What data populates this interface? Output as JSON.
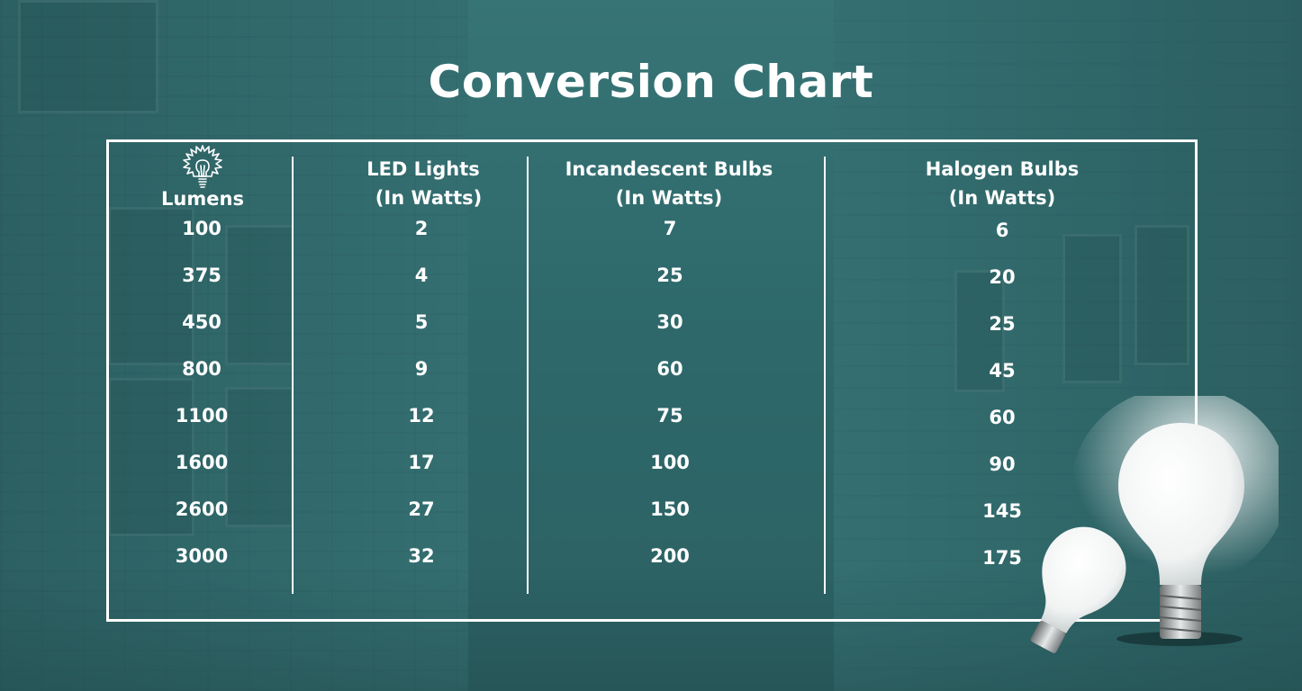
{
  "chart_data": {
    "type": "table",
    "title": "Conversion Chart",
    "columns": [
      {
        "key": "lumens",
        "label_lines": [
          "Lumens"
        ],
        "icon": "light-bulb-icon"
      },
      {
        "key": "led",
        "label_lines": [
          "LED Lights",
          "(In Watts)"
        ]
      },
      {
        "key": "incandescent",
        "label_lines": [
          "Incandescent Bulbs",
          "(In Watts)"
        ]
      },
      {
        "key": "halogen",
        "label_lines": [
          "Halogen Bulbs",
          "(In Watts)"
        ]
      }
    ],
    "rows": [
      [
        "100",
        "2",
        "7",
        "6"
      ],
      [
        "375",
        "4",
        "25",
        "20"
      ],
      [
        "450",
        "5",
        "30",
        "25"
      ],
      [
        "800",
        "9",
        "60",
        "45"
      ],
      [
        "1100",
        "12",
        "75",
        "60"
      ],
      [
        "1600",
        "17",
        "100",
        "90"
      ],
      [
        "2600",
        "27",
        "150",
        "145"
      ],
      [
        "3000",
        "32",
        "200",
        "175"
      ]
    ]
  },
  "colors": {
    "background": "#2f6467",
    "text": "#ffffff",
    "frame": "#ffffff"
  }
}
